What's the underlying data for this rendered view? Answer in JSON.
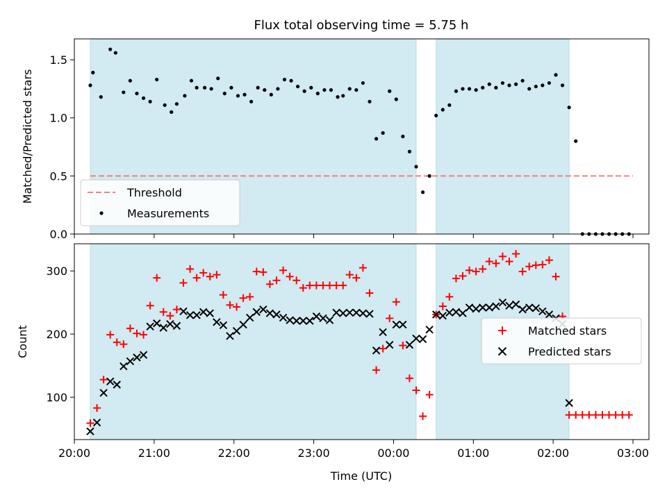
{
  "figure": {
    "title": "Flux total observing time = 5.75 h"
  },
  "chart_data": [
    {
      "type": "scatter",
      "panel": "top",
      "xlabel": "",
      "ylabel": "Matched/Predicted stars",
      "x_axis_type": "time",
      "xlim": [
        "20:00",
        "03:12"
      ],
      "ylim": [
        0,
        1.68
      ],
      "yticks": [
        0.0,
        0.5,
        1.0,
        1.5
      ],
      "ytick_labels": [
        "0.0",
        "0.5",
        "1.0",
        "1.5"
      ],
      "legend": {
        "placement": "lower-left",
        "entries": [
          "Threshold",
          "Measurements"
        ]
      },
      "threshold": {
        "name": "Threshold",
        "value": 0.5,
        "x_start": "20:12",
        "x_end": "03:00",
        "color": "#f08080",
        "style": "dashed"
      },
      "shaded_intervals": [
        {
          "start": "20:12",
          "end": "00:17",
          "color": "#add8e6"
        },
        {
          "start": "00:32",
          "end": "02:12",
          "color": "#add8e6"
        }
      ],
      "series": [
        {
          "name": "Measurements",
          "color": "#000000",
          "marker": "dot",
          "points": [
            [
              "20:12",
              1.28
            ],
            [
              "20:14",
              1.39
            ],
            [
              "20:20",
              1.18
            ],
            [
              "20:27",
              1.59
            ],
            [
              "20:31",
              1.56
            ],
            [
              "20:37",
              1.22
            ],
            [
              "20:42",
              1.32
            ],
            [
              "20:47",
              1.21
            ],
            [
              "20:52",
              1.17
            ],
            [
              "20:57",
              1.14
            ],
            [
              "21:02",
              1.33
            ],
            [
              "21:08",
              1.11
            ],
            [
              "21:13",
              1.05
            ],
            [
              "21:17",
              1.12
            ],
            [
              "21:23",
              1.19
            ],
            [
              "21:28",
              1.32
            ],
            [
              "21:32",
              1.26
            ],
            [
              "21:38",
              1.26
            ],
            [
              "21:43",
              1.25
            ],
            [
              "21:48",
              1.34
            ],
            [
              "21:53",
              1.21
            ],
            [
              "21:58",
              1.26
            ],
            [
              "22:03",
              1.19
            ],
            [
              "22:08",
              1.2
            ],
            [
              "22:13",
              1.14
            ],
            [
              "22:18",
              1.26
            ],
            [
              "22:23",
              1.24
            ],
            [
              "22:28",
              1.2
            ],
            [
              "22:33",
              1.25
            ],
            [
              "22:38",
              1.33
            ],
            [
              "22:43",
              1.32
            ],
            [
              "22:48",
              1.27
            ],
            [
              "22:53",
              1.23
            ],
            [
              "22:58",
              1.26
            ],
            [
              "23:03",
              1.21
            ],
            [
              "23:08",
              1.24
            ],
            [
              "23:13",
              1.24
            ],
            [
              "23:18",
              1.18
            ],
            [
              "23:22",
              1.19
            ],
            [
              "23:27",
              1.25
            ],
            [
              "23:32",
              1.24
            ],
            [
              "23:37",
              1.3
            ],
            [
              "23:42",
              1.14
            ],
            [
              "23:47",
              0.82
            ],
            [
              "23:52",
              0.87
            ],
            [
              "23:57",
              1.23
            ],
            [
              "00:02",
              1.16
            ],
            [
              "00:07",
              0.84
            ],
            [
              "00:12",
              0.71
            ],
            [
              "00:17",
              0.58
            ],
            [
              "00:22",
              0.36
            ],
            [
              "00:27",
              0.5
            ],
            [
              "00:32",
              1.02
            ],
            [
              "00:37",
              1.07
            ],
            [
              "00:42",
              1.11
            ],
            [
              "00:47",
              1.23
            ],
            [
              "00:52",
              1.25
            ],
            [
              "00:57",
              1.25
            ],
            [
              "01:02",
              1.24
            ],
            [
              "01:07",
              1.26
            ],
            [
              "01:12",
              1.29
            ],
            [
              "01:17",
              1.26
            ],
            [
              "01:22",
              1.3
            ],
            [
              "01:27",
              1.28
            ],
            [
              "01:32",
              1.29
            ],
            [
              "01:37",
              1.32
            ],
            [
              "01:42",
              1.25
            ],
            [
              "01:47",
              1.27
            ],
            [
              "01:52",
              1.28
            ],
            [
              "01:57",
              1.3
            ],
            [
              "02:02",
              1.37
            ],
            [
              "02:07",
              1.28
            ],
            [
              "02:12",
              1.09
            ],
            [
              "02:17",
              0.8
            ],
            [
              "02:22",
              0
            ],
            [
              "02:27",
              0
            ],
            [
              "02:32",
              0
            ],
            [
              "02:37",
              0
            ],
            [
              "02:42",
              0
            ],
            [
              "02:47",
              0
            ],
            [
              "02:52",
              0
            ],
            [
              "02:57",
              0
            ]
          ]
        }
      ]
    },
    {
      "type": "scatter",
      "panel": "bottom",
      "xlabel": "Time (UTC)",
      "ylabel": "Count",
      "x_axis_type": "time",
      "xlim": [
        "20:00",
        "03:12"
      ],
      "xticks": [
        "20:00",
        "21:00",
        "22:00",
        "23:00",
        "00:00",
        "01:00",
        "02:00",
        "03:00"
      ],
      "ylim": [
        33,
        343
      ],
      "yticks": [
        100,
        200,
        300
      ],
      "ytick_labels": [
        "100",
        "200",
        "300"
      ],
      "legend": {
        "placement": "right",
        "entries": [
          "Matched stars",
          "Predicted stars"
        ]
      },
      "shaded_intervals": [
        {
          "start": "20:12",
          "end": "00:17",
          "color": "#add8e6"
        },
        {
          "start": "00:32",
          "end": "02:12",
          "color": "#add8e6"
        }
      ],
      "series": [
        {
          "name": "Matched stars",
          "color": "#ff0000",
          "marker": "plus",
          "points": [
            [
              "20:12",
              59
            ],
            [
              "20:17",
              83
            ],
            [
              "20:22",
              128
            ],
            [
              "20:27",
              199
            ],
            [
              "20:32",
              187
            ],
            [
              "20:37",
              184
            ],
            [
              "20:42",
              209
            ],
            [
              "20:47",
              201
            ],
            [
              "20:52",
              199
            ],
            [
              "20:57",
              245
            ],
            [
              "21:02",
              289
            ],
            [
              "21:07",
              235
            ],
            [
              "21:12",
              229
            ],
            [
              "21:17",
              239
            ],
            [
              "21:22",
              281
            ],
            [
              "21:27",
              303
            ],
            [
              "21:32",
              289
            ],
            [
              "21:37",
              297
            ],
            [
              "21:42",
              291
            ],
            [
              "21:47",
              294
            ],
            [
              "21:52",
              262
            ],
            [
              "21:57",
              246
            ],
            [
              "22:02",
              243
            ],
            [
              "22:07",
              257
            ],
            [
              "22:12",
              259
            ],
            [
              "22:17",
              299
            ],
            [
              "22:22",
              298
            ],
            [
              "22:27",
              279
            ],
            [
              "22:32",
              285
            ],
            [
              "22:37",
              301
            ],
            [
              "22:42",
              291
            ],
            [
              "22:47",
              285
            ],
            [
              "22:52",
              273
            ],
            [
              "22:57",
              277
            ],
            [
              "23:02",
              277
            ],
            [
              "23:07",
              277
            ],
            [
              "23:12",
              277
            ],
            [
              "23:17",
              277
            ],
            [
              "23:22",
              277
            ],
            [
              "23:27",
              294
            ],
            [
              "23:32",
              289
            ],
            [
              "23:37",
              305
            ],
            [
              "23:42",
              265
            ],
            [
              "23:47",
              143
            ],
            [
              "23:52",
              177
            ],
            [
              "23:57",
              225
            ],
            [
              "00:02",
              251
            ],
            [
              "00:07",
              182
            ],
            [
              "00:12",
              130
            ],
            [
              "00:17",
              111
            ],
            [
              "00:22",
              70
            ],
            [
              "00:27",
              104
            ],
            [
              "00:32",
              231
            ],
            [
              "00:37",
              244
            ],
            [
              "00:42",
              259
            ],
            [
              "00:47",
              288
            ],
            [
              "00:52",
              292
            ],
            [
              "00:57",
              301
            ],
            [
              "01:02",
              299
            ],
            [
              "01:07",
              303
            ],
            [
              "01:12",
              315
            ],
            [
              "01:17",
              312
            ],
            [
              "01:22",
              323
            ],
            [
              "01:27",
              315
            ],
            [
              "01:32",
              327
            ],
            [
              "01:37",
              299
            ],
            [
              "01:42",
              307
            ],
            [
              "01:47",
              309
            ],
            [
              "01:52",
              310
            ],
            [
              "01:57",
              317
            ],
            [
              "02:02",
              291
            ],
            [
              "02:07",
              228
            ],
            [
              "02:12",
              72
            ],
            [
              "02:17",
              72
            ],
            [
              "02:22",
              72
            ],
            [
              "02:27",
              72
            ],
            [
              "02:32",
              72
            ],
            [
              "02:37",
              72
            ],
            [
              "02:42",
              72
            ],
            [
              "02:47",
              72
            ],
            [
              "02:52",
              72
            ],
            [
              "02:57",
              72
            ]
          ]
        },
        {
          "name": "Predicted stars",
          "color": "#000000",
          "marker": "x",
          "points": [
            [
              "20:12",
              46
            ],
            [
              "20:17",
              60
            ],
            [
              "20:22",
              107
            ],
            [
              "20:27",
              125
            ],
            [
              "20:32",
              120
            ],
            [
              "20:37",
              149
            ],
            [
              "20:42",
              157
            ],
            [
              "20:47",
              163
            ],
            [
              "20:52",
              167
            ],
            [
              "20:57",
              212
            ],
            [
              "21:02",
              217
            ],
            [
              "21:07",
              210
            ],
            [
              "21:12",
              216
            ],
            [
              "21:17",
              213
            ],
            [
              "21:22",
              236
            ],
            [
              "21:27",
              230
            ],
            [
              "21:32",
              230
            ],
            [
              "21:37",
              235
            ],
            [
              "21:42",
              233
            ],
            [
              "21:47",
              219
            ],
            [
              "21:52",
              214
            ],
            [
              "21:57",
              197
            ],
            [
              "22:02",
              205
            ],
            [
              "22:07",
              215
            ],
            [
              "22:12",
              226
            ],
            [
              "22:17",
              235
            ],
            [
              "22:22",
              239
            ],
            [
              "22:27",
              233
            ],
            [
              "22:32",
              231
            ],
            [
              "22:37",
              226
            ],
            [
              "22:42",
              222
            ],
            [
              "22:47",
              221
            ],
            [
              "22:52",
              221
            ],
            [
              "22:57",
              221
            ],
            [
              "23:02",
              228
            ],
            [
              "23:07",
              225
            ],
            [
              "23:12",
              222
            ],
            [
              "23:17",
              234
            ],
            [
              "23:22",
              233
            ],
            [
              "23:27",
              234
            ],
            [
              "23:32",
              234
            ],
            [
              "23:37",
              233
            ],
            [
              "23:42",
              232
            ],
            [
              "23:47",
              174
            ],
            [
              "23:52",
              203
            ],
            [
              "23:57",
              183
            ],
            [
              "00:02",
              215
            ],
            [
              "00:07",
              215
            ],
            [
              "00:12",
              183
            ],
            [
              "00:17",
              193
            ],
            [
              "00:22",
              192
            ],
            [
              "00:27",
              207
            ],
            [
              "00:32",
              231
            ],
            [
              "00:37",
              229
            ],
            [
              "00:42",
              234
            ],
            [
              "00:47",
              235
            ],
            [
              "00:52",
              233
            ],
            [
              "00:57",
              242
            ],
            [
              "01:02",
              240
            ],
            [
              "01:07",
              242
            ],
            [
              "01:12",
              242
            ],
            [
              "01:17",
              244
            ],
            [
              "01:22",
              250
            ],
            [
              "01:27",
              245
            ],
            [
              "01:32",
              247
            ],
            [
              "01:37",
              239
            ],
            [
              "01:42",
              242
            ],
            [
              "01:47",
              241
            ],
            [
              "01:52",
              236
            ],
            [
              "01:57",
              231
            ],
            [
              "02:02",
              225
            ],
            [
              "02:07",
              216
            ],
            [
              "02:12",
              91
            ]
          ]
        }
      ]
    }
  ]
}
